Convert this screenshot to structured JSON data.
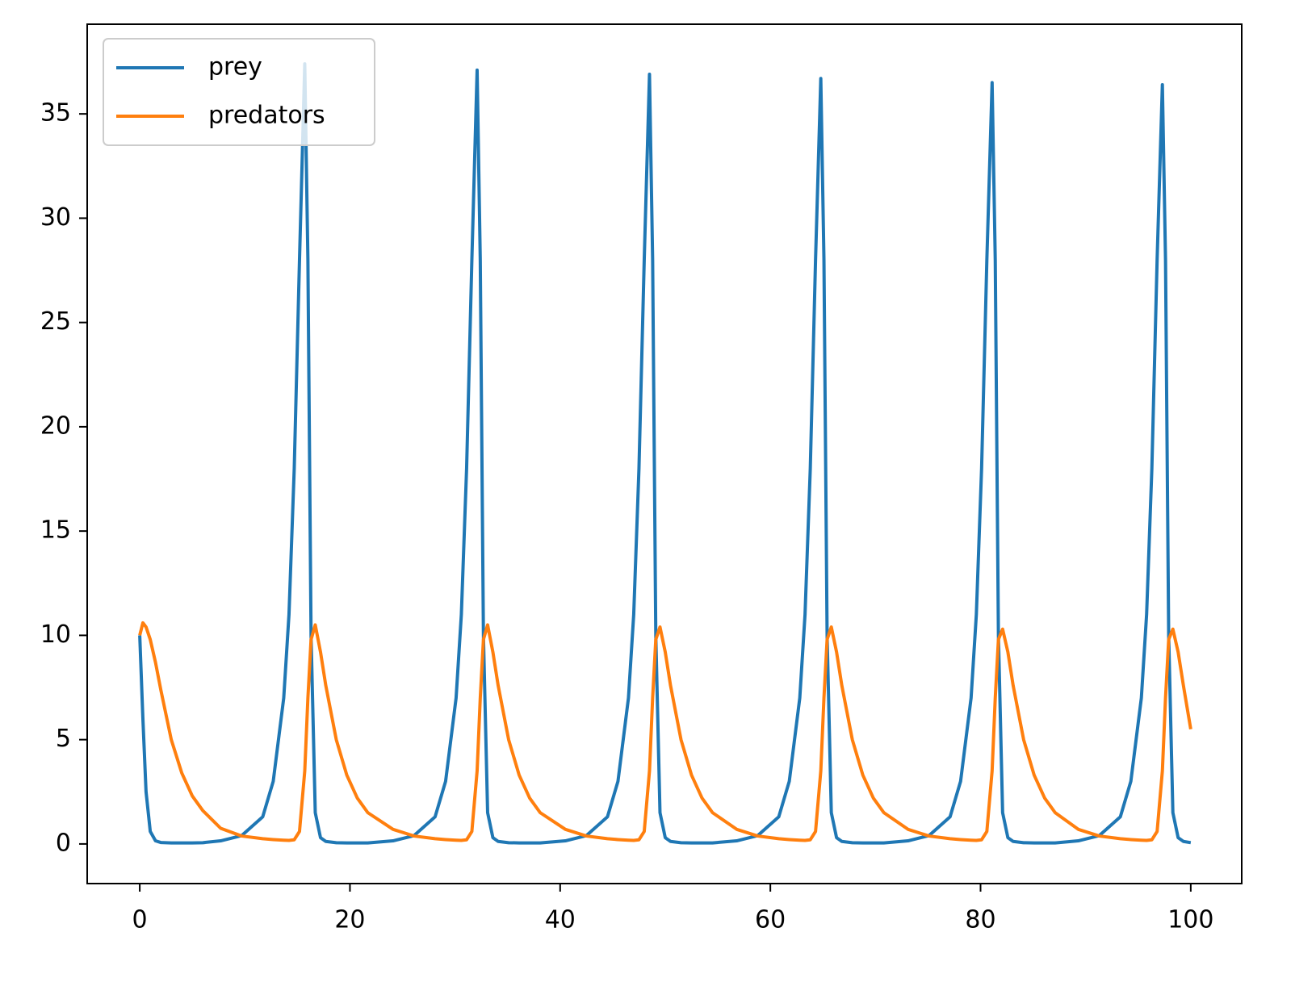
{
  "chart_data": {
    "type": "line",
    "x": [
      0,
      0.3,
      0.6,
      1,
      1.5,
      2,
      3,
      4,
      5,
      6,
      7.7,
      9.7,
      11.7,
      12.7,
      13.7,
      14.2,
      14.7,
      15.2,
      15.7,
      16,
      16.3,
      16.7,
      17.2,
      17.7,
      18.7,
      19.7,
      20.7,
      21.7,
      24.1,
      26.1,
      28.1,
      29.1,
      30.1,
      30.6,
      31.1,
      31.6,
      32.1,
      32.4,
      32.7,
      33.1,
      33.6,
      34.1,
      35.1,
      36.1,
      37.1,
      38.1,
      40.5,
      42.5,
      44.5,
      45.5,
      46.5,
      47,
      47.5,
      48,
      48.5,
      48.8,
      49.1,
      49.5,
      50,
      50.5,
      51.5,
      52.5,
      53.5,
      54.5,
      56.8,
      58.8,
      60.8,
      61.8,
      62.8,
      63.3,
      63.8,
      64.3,
      64.8,
      65.1,
      65.4,
      65.8,
      66.3,
      66.8,
      67.8,
      68.8,
      69.8,
      70.8,
      73.1,
      75.1,
      77.1,
      78.1,
      79.1,
      79.6,
      80.1,
      80.6,
      81.1,
      81.4,
      81.7,
      82.1,
      82.6,
      83.1,
      84.1,
      85.1,
      86.1,
      87.1,
      89.3,
      91.3,
      93.3,
      94.3,
      95.3,
      95.8,
      96.3,
      96.8,
      97.3,
      97.6,
      97.9,
      98.3,
      98.8,
      99.3,
      100
    ],
    "series": [
      {
        "name": "prey",
        "color": "#1f77b4",
        "values": [
          10,
          6,
          2.5,
          0.6,
          0.15,
          0.07,
          0.05,
          0.05,
          0.05,
          0.06,
          0.15,
          0.4,
          1.3,
          3,
          7,
          11,
          18,
          28,
          37.4,
          28,
          10,
          1.5,
          0.3,
          0.12,
          0.06,
          0.05,
          0.05,
          0.05,
          0.15,
          0.4,
          1.3,
          3,
          7,
          11,
          18,
          28,
          37.1,
          28,
          10,
          1.5,
          0.3,
          0.12,
          0.06,
          0.05,
          0.05,
          0.05,
          0.15,
          0.4,
          1.3,
          3,
          7,
          11,
          18,
          28,
          36.9,
          28,
          10,
          1.5,
          0.3,
          0.12,
          0.06,
          0.05,
          0.05,
          0.05,
          0.15,
          0.4,
          1.3,
          3,
          7,
          11,
          18,
          28,
          36.7,
          28,
          10,
          1.5,
          0.3,
          0.12,
          0.06,
          0.05,
          0.05,
          0.05,
          0.15,
          0.4,
          1.3,
          3,
          7,
          11,
          18,
          28,
          36.5,
          28,
          10,
          1.5,
          0.3,
          0.12,
          0.06,
          0.05,
          0.05,
          0.05,
          0.15,
          0.4,
          1.3,
          3,
          7,
          11,
          18,
          28,
          36.4,
          28,
          10,
          1.5,
          0.3,
          0.12,
          0.06
        ]
      },
      {
        "name": "predators",
        "color": "#ff7f0e",
        "values": [
          10,
          10.6,
          10.4,
          9.8,
          8.7,
          7.4,
          5,
          3.4,
          2.3,
          1.6,
          0.75,
          0.38,
          0.25,
          0.21,
          0.18,
          0.17,
          0.2,
          0.6,
          3.5,
          7,
          9.8,
          10.5,
          9.2,
          7.6,
          5,
          3.3,
          2.2,
          1.5,
          0.7,
          0.38,
          0.25,
          0.21,
          0.18,
          0.17,
          0.2,
          0.6,
          3.5,
          7,
          9.8,
          10.5,
          9.2,
          7.6,
          5,
          3.3,
          2.2,
          1.5,
          0.7,
          0.38,
          0.25,
          0.21,
          0.18,
          0.17,
          0.2,
          0.6,
          3.5,
          7,
          9.8,
          10.4,
          9.2,
          7.6,
          5,
          3.3,
          2.2,
          1.5,
          0.7,
          0.38,
          0.25,
          0.21,
          0.18,
          0.17,
          0.2,
          0.6,
          3.5,
          7,
          9.8,
          10.4,
          9.2,
          7.6,
          5,
          3.3,
          2.2,
          1.5,
          0.7,
          0.38,
          0.25,
          0.21,
          0.18,
          0.17,
          0.2,
          0.6,
          3.5,
          7,
          9.8,
          10.3,
          9.2,
          7.6,
          5,
          3.3,
          2.2,
          1.5,
          0.7,
          0.38,
          0.25,
          0.21,
          0.18,
          0.17,
          0.2,
          0.6,
          3.5,
          7,
          9.8,
          10.3,
          9.2,
          7.6,
          5.5
        ]
      }
    ],
    "xlim": [
      -5,
      104.85
    ],
    "ylim": [
      -1.9,
      39.3
    ],
    "xticks": [
      0,
      20,
      40,
      60,
      80,
      100
    ],
    "yticks": [
      0,
      5,
      10,
      15,
      20,
      25,
      30,
      35
    ],
    "grid": false,
    "legend": "upper left"
  }
}
